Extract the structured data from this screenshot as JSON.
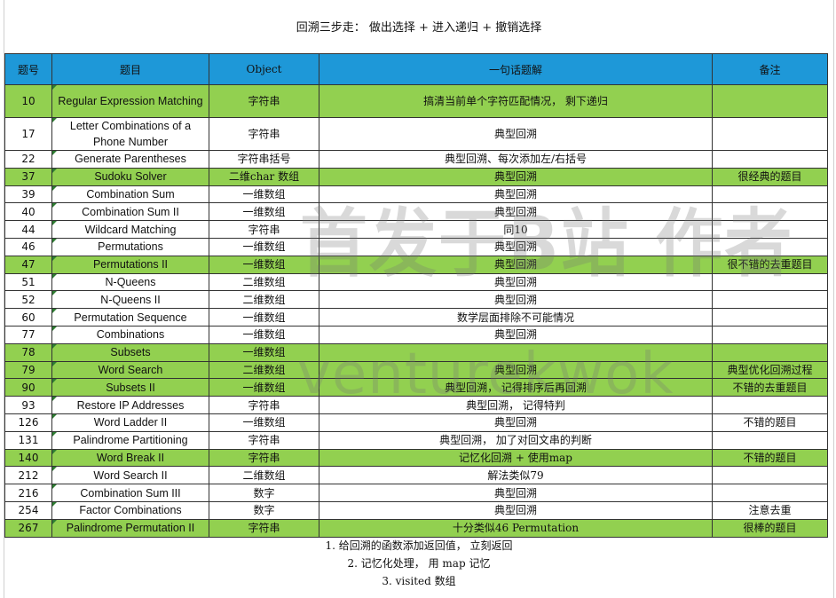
{
  "title": "回溯三步走： 做出选择 + 进入递归 + 撤销选择",
  "headers": [
    "题号",
    "题目",
    "Object",
    "一句话题解",
    "备注"
  ],
  "rows": [
    {
      "id": "10",
      "name": "Regular Expression Matching",
      "obj": "字符串",
      "desc": "搞清当前单个字符匹配情况， 剩下递归",
      "note": "",
      "hl": true,
      "tall": true
    },
    {
      "id": "17",
      "name": "Letter Combinations of a Phone Number",
      "obj": "字符串",
      "desc": "典型回溯",
      "note": "",
      "hl": false,
      "tall": true
    },
    {
      "id": "22",
      "name": "Generate Parentheses",
      "obj": "字符串括号",
      "desc": "典型回溯、每次添加左/右括号",
      "note": "",
      "hl": false
    },
    {
      "id": "37",
      "name": "Sudoku Solver",
      "obj": "二维char 数组",
      "desc": "典型回溯",
      "note": "很经典的题目",
      "hl": true
    },
    {
      "id": "39",
      "name": "Combination Sum",
      "obj": "一维数组",
      "desc": "典型回溯",
      "note": "",
      "hl": false
    },
    {
      "id": "40",
      "name": "Combination Sum II",
      "obj": "一维数组",
      "desc": "典型回溯",
      "note": "",
      "hl": false
    },
    {
      "id": "44",
      "name": "Wildcard Matching",
      "obj": "字符串",
      "desc": "同10",
      "note": "",
      "hl": false
    },
    {
      "id": "46",
      "name": "Permutations",
      "obj": "一维数组",
      "desc": "典型回溯",
      "note": "",
      "hl": false
    },
    {
      "id": "47",
      "name": "Permutations II",
      "obj": "一维数组",
      "desc": "典型回溯",
      "note": "很不错的去重题目",
      "hl": true
    },
    {
      "id": "51",
      "name": "N-Queens",
      "obj": "二维数组",
      "desc": "典型回溯",
      "note": "",
      "hl": false
    },
    {
      "id": "52",
      "name": "N-Queens II",
      "obj": "二维数组",
      "desc": "典型回溯",
      "note": "",
      "hl": false
    },
    {
      "id": "60",
      "name": "Permutation Sequence",
      "obj": "一维数组",
      "desc": "数学层面排除不可能情况",
      "note": "",
      "hl": false
    },
    {
      "id": "77",
      "name": "Combinations",
      "obj": "一维数组",
      "desc": "典型回溯",
      "note": "",
      "hl": false
    },
    {
      "id": "78",
      "name": "Subsets",
      "obj": "一维数组",
      "desc": "",
      "note": "",
      "hl": true
    },
    {
      "id": "79",
      "name": "Word Search",
      "obj": "二维数组",
      "desc": "典型回溯",
      "note": "典型优化回溯过程",
      "hl": true
    },
    {
      "id": "90",
      "name": "Subsets II",
      "obj": "一维数组",
      "desc": "典型回溯， 记得排序后再回溯",
      "note": "不错的去重题目",
      "hl": true
    },
    {
      "id": "93",
      "name": "Restore IP Addresses",
      "obj": "字符串",
      "desc": "典型回溯， 记得特判",
      "note": "",
      "hl": false
    },
    {
      "id": "126",
      "name": "Word Ladder II",
      "obj": "一维数组",
      "desc": "典型回溯",
      "note": "不错的题目",
      "hl": false
    },
    {
      "id": "131",
      "name": "Palindrome Partitioning",
      "obj": "字符串",
      "desc": "典型回溯， 加了对回文串的判断",
      "note": "",
      "hl": false
    },
    {
      "id": "140",
      "name": "Word Break II",
      "obj": "字符串",
      "desc": "记忆化回溯 + 使用map",
      "note": "不错的题目",
      "hl": true
    },
    {
      "id": "212",
      "name": "Word Search II",
      "obj": "二维数组",
      "desc": "解法类似79",
      "note": "",
      "hl": false
    },
    {
      "id": "216",
      "name": "Combination Sum III",
      "obj": "数字",
      "desc": "典型回溯",
      "note": "",
      "hl": false
    },
    {
      "id": "254",
      "name": "Factor Combinations",
      "obj": "数字",
      "desc": "典型回溯",
      "note": "注意去重",
      "hl": false
    },
    {
      "id": "267",
      "name": "Palindrome Permutation II",
      "obj": "字符串",
      "desc": "十分类似46 Permutation",
      "note": "很棒的题目",
      "hl": true
    }
  ],
  "notes": [
    "1. 给回溯的函数添加返回值， 立刻返回",
    "2. 记忆化处理， 用 map 记忆",
    "3. visited 数组"
  ],
  "watermarks": [
    "首发于B站 作者",
    "venturekwok"
  ],
  "colors": {
    "header": "#1e98d8",
    "highlight": "#92d050"
  }
}
